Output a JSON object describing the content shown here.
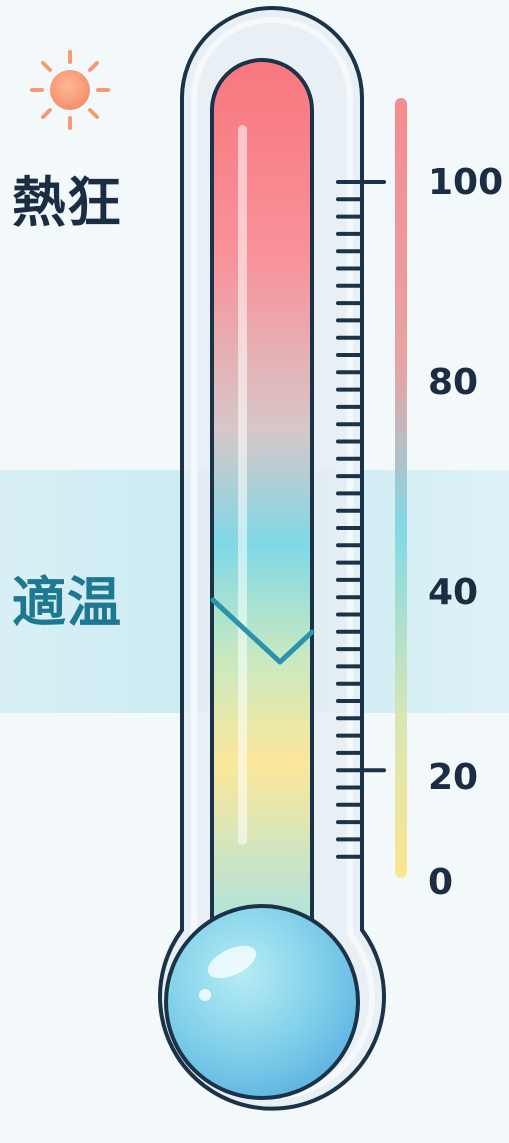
{
  "labels": {
    "hot": "熱狂",
    "comfort": "適温"
  },
  "scale": {
    "tick_labels": [
      "100",
      "80",
      "40",
      "20",
      "0"
    ]
  },
  "icons": {
    "sun": "sun-icon"
  },
  "colors": {
    "background": "#f3f8fb",
    "comfort_band": "#bfe6ee",
    "hot_red": "#f87f86",
    "cool_cyan": "#6fd5e4",
    "warm_yellow": "#fbe79a",
    "bulb_blue": "#74c8ea",
    "outline": "#1b3348",
    "comfort_text": "#1f7892",
    "sun_orange": "#f79a72"
  }
}
